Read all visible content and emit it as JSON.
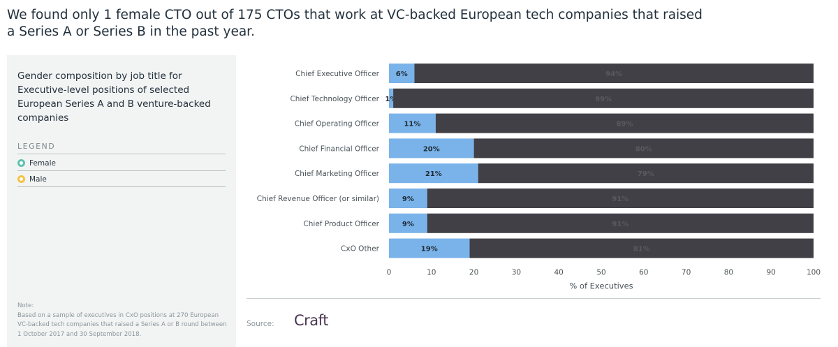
{
  "headline": "We found only 1 female CTO out of 175 CTOs that work at VC-backed European tech companies that raised a Series A or Series B in the past year.",
  "panel": {
    "title": "Gender composition by job title for Executive-level positions of selected European Series A and B venture-backed companies",
    "legend_heading": "LEGEND",
    "legend": [
      {
        "label": "Female",
        "color": "#5ec3b3"
      },
      {
        "label": "Male",
        "color": "#f3c242"
      }
    ],
    "note_label": "Note:",
    "note_text": "Based on a sample of executives in CxO positions at 270 European VC-backed tech companies that raised a Series A or B round between 1 October 2017 and 30 September 2018."
  },
  "footer": {
    "source_label": "Source:",
    "brand": "Craft"
  },
  "chart_data": {
    "type": "bar",
    "orientation": "horizontal",
    "stacked": true,
    "categories": [
      "Chief Executive Officer",
      "Chief Technology Officer",
      "Chief Operating Officer",
      "Chief Financial Officer",
      "Chief Marketing Officer",
      "Chief Revenue Officer (or similar)",
      "Chief Product Officer",
      "CxO Other"
    ],
    "series": [
      {
        "name": "Female",
        "color": "#7ab3ea",
        "values": [
          6,
          1,
          11,
          20,
          21,
          9,
          9,
          19
        ],
        "labels": [
          "6%",
          "1%",
          "11%",
          "20%",
          "21%",
          "9%",
          "9%",
          "19%"
        ]
      },
      {
        "name": "Male",
        "color": "#414046",
        "values": [
          94,
          99,
          89,
          80,
          79,
          91,
          91,
          81
        ],
        "labels": [
          "94%",
          "99%",
          "89%",
          "80%",
          "79%",
          "91%",
          "91%",
          "81%"
        ]
      }
    ],
    "xlabel": "% of Executives",
    "xlim": [
      0,
      100
    ],
    "xticks": [
      0,
      10,
      20,
      30,
      40,
      50,
      60,
      70,
      80,
      90,
      100
    ],
    "grid": false,
    "legend_position": "left panel"
  }
}
